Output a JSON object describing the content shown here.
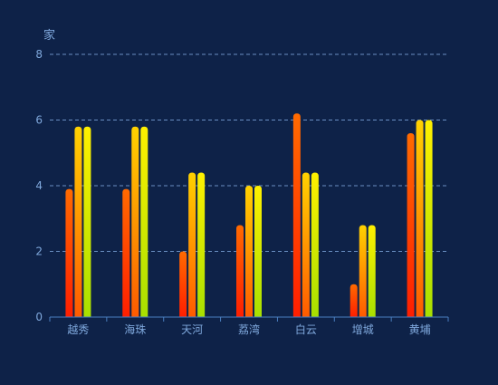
{
  "chart_data": {
    "type": "bar",
    "ylabel": "家",
    "categories": [
      "越秀",
      "海珠",
      "天河",
      "荔湾",
      "白云",
      "增城",
      "黄埔"
    ],
    "series": [
      {
        "values": [
          3.9,
          3.9,
          2.0,
          2.8,
          6.2,
          1.0,
          5.6
        ]
      },
      {
        "values": [
          5.8,
          5.8,
          4.4,
          4.0,
          4.4,
          2.8,
          6.0
        ]
      },
      {
        "values": [
          5.8,
          5.8,
          4.4,
          4.0,
          4.4,
          2.8,
          6.0
        ]
      }
    ],
    "ylim": [
      0,
      8
    ],
    "yticks": [
      0,
      2,
      4,
      6,
      8
    ],
    "grid": true,
    "legend": "none"
  },
  "colors": {
    "background": "#0e2248",
    "axis": "#4a7fc0",
    "grid": "#6a8fc2",
    "label": "#7fa8dc",
    "series_gradients": [
      [
        "#ff6a00",
        "#ff1e00"
      ],
      [
        "#ffd200",
        "#ff5a00"
      ],
      [
        "#fff000",
        "#a8e000"
      ]
    ]
  }
}
